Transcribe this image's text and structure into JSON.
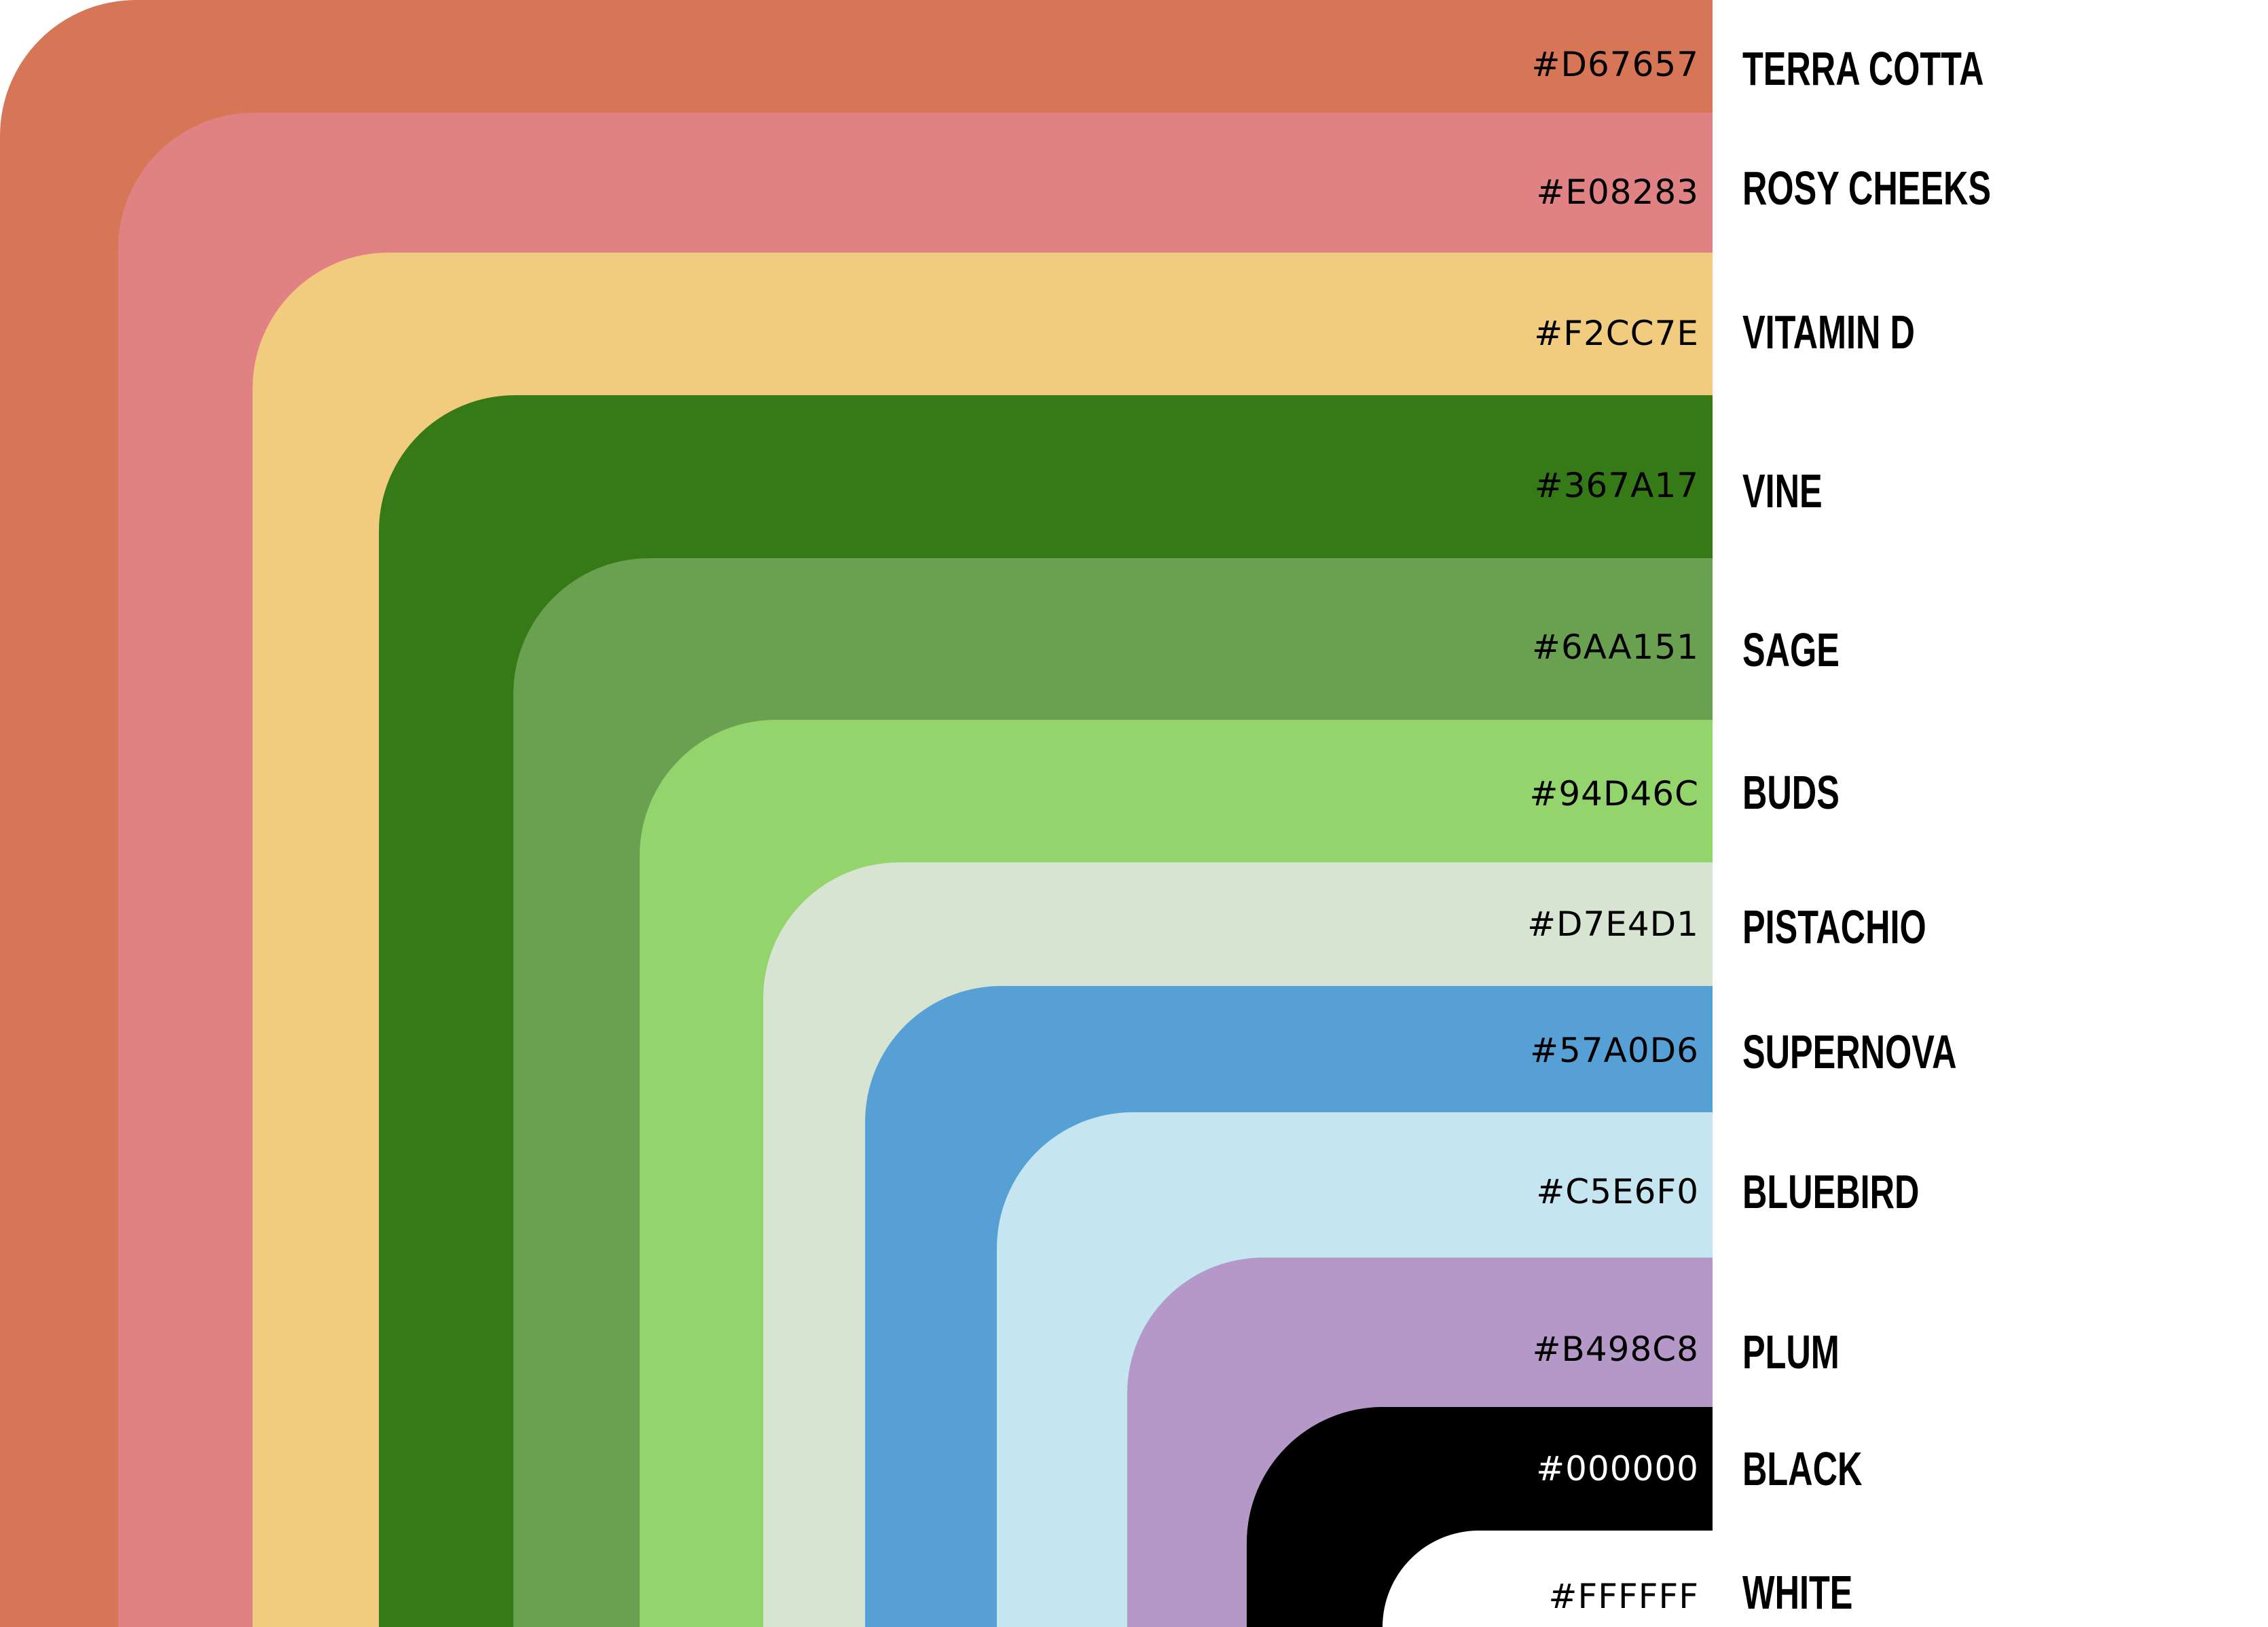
{
  "swatches": [
    {
      "hex": "#D67657",
      "name": "TERRA COTTA",
      "fill": "#D67657",
      "text_color": "#000000"
    },
    {
      "hex": "#E08283",
      "name": "ROSY CHEEKS",
      "fill": "#E08283",
      "text_color": "#000000"
    },
    {
      "hex": "#F2CC7E",
      "name": "VITAMIN D",
      "fill": "#F2CC7E",
      "text_color": "#000000"
    },
    {
      "hex": "#367A17",
      "name": "VINE",
      "fill": "#367A17",
      "text_color": "#000000"
    },
    {
      "hex": "#6AA151",
      "name": "SAGE",
      "fill": "#6AA151",
      "text_color": "#000000"
    },
    {
      "hex": "#94D46C",
      "name": "BUDS",
      "fill": "#94D46C",
      "text_color": "#000000"
    },
    {
      "hex": "#D7E4D1",
      "name": "PISTACHIO",
      "fill": "#D7E4D1",
      "text_color": "#000000"
    },
    {
      "hex": "#57A0D6",
      "name": "SUPERNOVA",
      "fill": "#57A0D6",
      "text_color": "#000000"
    },
    {
      "hex": "#C5E6F0",
      "name": "BLUEBIRD",
      "fill": "#C5E6F0",
      "text_color": "#000000"
    },
    {
      "hex": "#B498C8",
      "name": "PLUM",
      "fill": "#B498C8",
      "text_color": "#000000"
    },
    {
      "hex": "#000000",
      "name": "BLACK",
      "fill": "#000000",
      "text_color": "#FFFFFF"
    },
    {
      "hex": "#FFFFFF",
      "name": "WHITE",
      "fill": "#FFFFFF",
      "text_color": "#000000"
    }
  ]
}
